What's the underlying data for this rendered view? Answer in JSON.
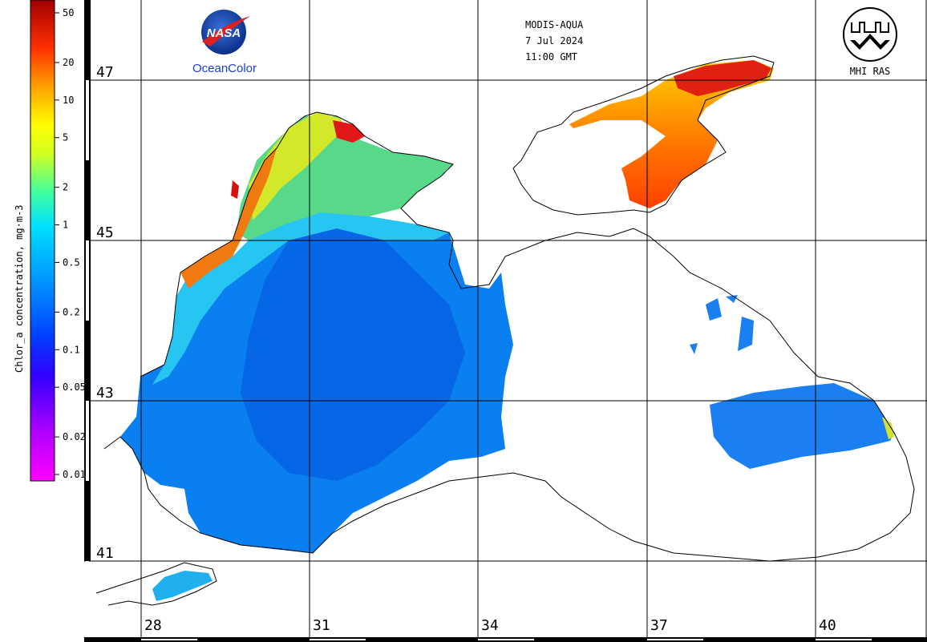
{
  "header": {
    "sensor": "MODIS-AQUA",
    "date": "7 Jul 2024",
    "time": "11:00 GMT"
  },
  "logos": {
    "nasa_text": "NASA",
    "oceancolor_text": "OceanColor",
    "mhi_text": "MHI RAS"
  },
  "colorbar": {
    "label": "Chlor_a concentration, mg·m-3",
    "ticks": [
      "50",
      "20",
      "10",
      "5",
      "2",
      "1",
      "0.5",
      "0.2",
      "0.1",
      "0.05",
      "0.02",
      "0.01"
    ],
    "colors": [
      "#ff00ff",
      "#b000ff",
      "#4000ff",
      "#0040ff",
      "#0090ff",
      "#00d8ff",
      "#00ffd0",
      "#a0ff40",
      "#ffff00",
      "#ffa000",
      "#ff4000",
      "#d00000",
      "#900000"
    ]
  },
  "grid": {
    "latitudes": [
      "47",
      "45",
      "43",
      "41"
    ],
    "longitudes": [
      "28",
      "31",
      "34",
      "37",
      "40"
    ]
  }
}
